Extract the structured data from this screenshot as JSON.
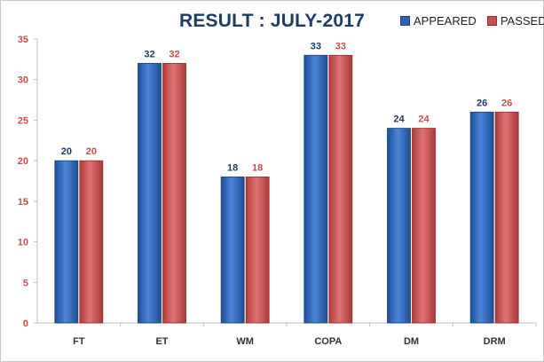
{
  "colors": {
    "appeared": "#2e64b5",
    "passed": "#cc4e4c",
    "appeared_label": "#1f3b6a",
    "passed_label": "#c0504d",
    "axis": "#bfbfbf"
  },
  "chart_data": {
    "type": "bar",
    "title": "RESULT : JULY-2017",
    "xlabel": "",
    "ylabel": "",
    "categories": [
      "FT",
      "ET",
      "WM",
      "COPA",
      "DM",
      "DRM"
    ],
    "series": [
      {
        "name": "APPEARED",
        "values": [
          20,
          32,
          18,
          33,
          24,
          26
        ]
      },
      {
        "name": "PASSED",
        "values": [
          20,
          32,
          18,
          33,
          24,
          26
        ]
      }
    ],
    "ylim": [
      0,
      35
    ],
    "yticks": [
      0,
      5,
      10,
      15,
      20,
      25,
      30,
      35
    ],
    "grid": false,
    "legend_position": "top-right",
    "data_labels": true
  }
}
